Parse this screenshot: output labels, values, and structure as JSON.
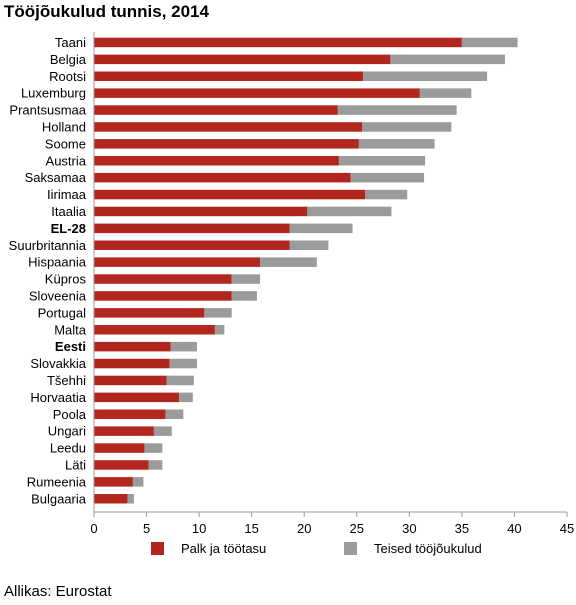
{
  "title": "Tööjõukulud tunnis, 2014",
  "source": "Allikas: Eurostat",
  "colors": {
    "wage": "#b3261e",
    "other": "#9b9b9b",
    "axis": "#999999"
  },
  "chart_data": {
    "type": "bar",
    "orientation": "horizontal",
    "stacked": true,
    "categories": [
      "Taani",
      "Belgia",
      "Rootsi",
      "Luxemburg",
      "Prantsusmaa",
      "Holland",
      "Soome",
      "Austria",
      "Saksamaa",
      "Iirimaa",
      "Itaalia",
      "EL-28",
      "Suurbritannia",
      "Hispaania",
      "Küpros",
      "Sloveenia",
      "Portugal",
      "Malta",
      "Eesti",
      "Slovakkia",
      "Tšehhi",
      "Horvaatia",
      "Poola",
      "Ungari",
      "Leedu",
      "Läti",
      "Rumeenia",
      "Bulgaaria"
    ],
    "bold_categories": [
      "EL-28",
      "Eesti"
    ],
    "series": [
      {
        "name": "Palk ja töötasu",
        "values": [
          35.0,
          28.2,
          25.6,
          31.0,
          23.2,
          25.5,
          25.2,
          23.3,
          24.4,
          25.8,
          20.3,
          18.6,
          18.6,
          15.8,
          13.1,
          13.1,
          10.5,
          11.5,
          7.3,
          7.2,
          6.9,
          8.1,
          6.8,
          5.7,
          4.8,
          5.2,
          3.7,
          3.2
        ]
      },
      {
        "name": "Teised tööjõukulud",
        "values": [
          5.3,
          10.9,
          11.8,
          4.9,
          11.3,
          8.5,
          7.2,
          8.2,
          7.0,
          4.0,
          8.0,
          6.0,
          3.7,
          5.4,
          2.7,
          2.4,
          2.6,
          0.9,
          2.5,
          2.6,
          2.6,
          1.3,
          1.7,
          1.7,
          1.7,
          1.3,
          1.0,
          0.6
        ]
      }
    ],
    "x_ticks": [
      "0",
      "5",
      "10",
      "15",
      "20",
      "25",
      "30",
      "35",
      "40",
      "45"
    ],
    "xlim": [
      0,
      45
    ],
    "legend_position": "bottom",
    "grid": false
  }
}
